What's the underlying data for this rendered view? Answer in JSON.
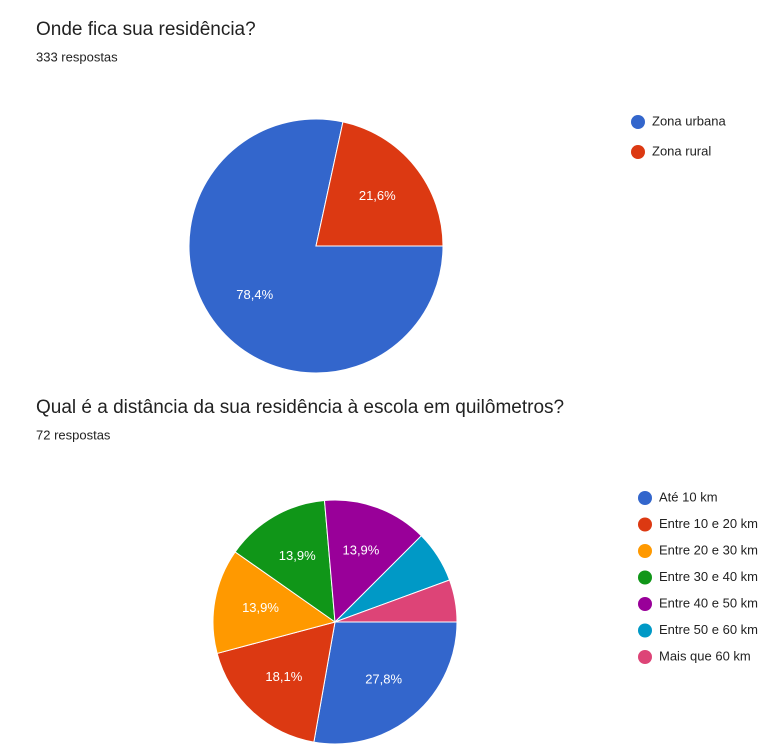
{
  "chart_data": [
    {
      "type": "pie",
      "title": "Onde fica sua residência?",
      "subtitle": "333 respostas",
      "categories": [
        "Zona urbana",
        "Zona rural"
      ],
      "values": [
        78.4,
        21.6
      ],
      "value_labels": [
        "78,4%",
        "21,6%"
      ],
      "colors": [
        "#3366cc",
        "#dc3912"
      ],
      "legend": "right"
    },
    {
      "type": "pie",
      "title": "Qual é a distância da sua residência à escola em quilômetros?",
      "subtitle": "72 respostas",
      "categories": [
        "Até 10 km",
        "Entre 10 e 20 km",
        "Entre 20 e 30 km",
        "Entre 30 e 40 km",
        "Entre 40 e 50 km",
        "Entre 50 e 60 km",
        "Mais que 60 km"
      ],
      "values": [
        27.8,
        18.1,
        13.9,
        13.9,
        13.9,
        6.9,
        5.6
      ],
      "value_labels": [
        "27,8%",
        "18,1%",
        "13,9%",
        "13,9%",
        "13,9%",
        null,
        null
      ],
      "colors": [
        "#3366cc",
        "#dc3912",
        "#ff9900",
        "#109618",
        "#990099",
        "#0099c6",
        "#dd4477"
      ],
      "legend": "right"
    }
  ]
}
